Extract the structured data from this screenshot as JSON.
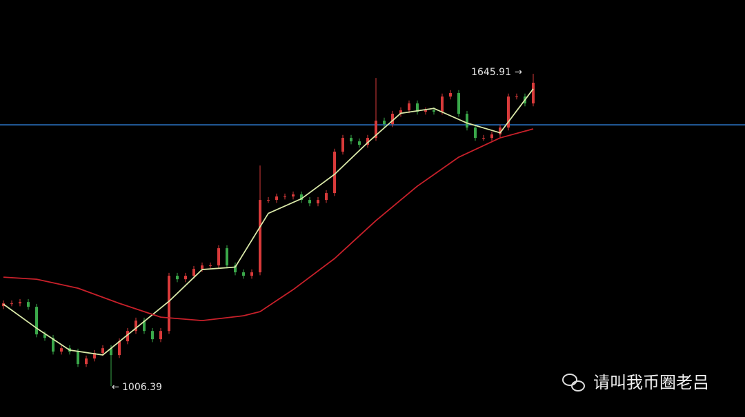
{
  "chart_data": {
    "type": "candlestick",
    "ylim": [
      943,
      1797
    ],
    "up_color": "#d83a3a",
    "down_color": "#3aa84a",
    "open": [
      1170,
      1175.7,
      1175.7,
      1178.5,
      1168.7,
      1112.2,
      1105.1,
      1076.9,
      1083.9,
      1076.9,
      1051.5,
      1062.8,
      1074.1,
      1083.9,
      1069.8,
      1098.1,
      1119.2,
      1140.4,
      1119.2,
      1102.3,
      1119.2,
      1232.2,
      1225.1,
      1232.2,
      1246.3,
      1253.4,
      1253.4,
      1288.7,
      1253.4,
      1239.3,
      1232.2,
      1239.3,
      1387.5,
      1387.5,
      1394.6,
      1394.6,
      1398.8,
      1387.5,
      1380.5,
      1387.5,
      1401.6,
      1486.4,
      1514.6,
      1507.5,
      1500.5,
      1514.6,
      1549.9,
      1542.8,
      1564.0,
      1571.1,
      1585.2,
      1568.3,
      1571.1,
      1568.3,
      1599.3,
      1606.4,
      1564.0,
      1535.8,
      1514.6,
      1514.6,
      1521.7,
      1535.8,
      1599.3,
      1599.3,
      1585.2
    ],
    "high": [
      1181.7,
      1181.7,
      1184.5,
      1184.5,
      1174.7,
      1118.2,
      1111.1,
      1089.9,
      1089.9,
      1082.9,
      1068.8,
      1080.1,
      1089.9,
      1089.9,
      1104.1,
      1125.2,
      1146.4,
      1146.4,
      1125.2,
      1125.2,
      1238.2,
      1238.2,
      1238.2,
      1252.3,
      1259.4,
      1259.4,
      1294.7,
      1294.7,
      1259.4,
      1245.3,
      1245.3,
      1458.1,
      1393.5,
      1400.6,
      1400.6,
      1404.8,
      1404.8,
      1393.5,
      1393.5,
      1407.6,
      1492.4,
      1520.6,
      1520.6,
      1513.5,
      1520.6,
      1637.4,
      1555.9,
      1570,
      1577.1,
      1591.2,
      1591.2,
      1577.1,
      1577.1,
      1605.3,
      1612.4,
      1612.4,
      1570,
      1541.8,
      1520.6,
      1527.7,
      1541.8,
      1605.3,
      1605.3,
      1605.3,
      1645.91
    ],
    "low": [
      1164,
      1169.7,
      1169.7,
      1162.7,
      1106.2,
      1099.1,
      1070.9,
      1070.9,
      1070.9,
      1045.5,
      1045.5,
      1056.8,
      1068.1,
      1006.39,
      1063.8,
      1092.1,
      1113.2,
      1113.2,
      1096.3,
      1096.3,
      1113.2,
      1219.1,
      1219.1,
      1226.2,
      1240.3,
      1247.4,
      1247.4,
      1247.4,
      1233.3,
      1226.2,
      1226.2,
      1233.3,
      1381.5,
      1381.5,
      1388.6,
      1388.6,
      1381.5,
      1374.5,
      1374.5,
      1381.5,
      1395.6,
      1480.4,
      1501.5,
      1494.5,
      1494.5,
      1508.6,
      1536.8,
      1536.8,
      1558,
      1565.1,
      1562.3,
      1562.3,
      1562.3,
      1562.3,
      1593.3,
      1558,
      1529.8,
      1508.6,
      1508.6,
      1508.6,
      1515.7,
      1529.8,
      1593.3,
      1579.2,
      1579.2
    ],
    "close": [
      1175.7,
      1175.7,
      1178.5,
      1168.7,
      1112.2,
      1105.1,
      1076.9,
      1083.9,
      1076.9,
      1051.5,
      1062.8,
      1074.1,
      1083.9,
      1069.8,
      1098.1,
      1119.2,
      1140.4,
      1119.2,
      1102.3,
      1119.2,
      1232.2,
      1225.1,
      1232.2,
      1246.3,
      1253.4,
      1253.4,
      1288.7,
      1253.4,
      1239.3,
      1232.2,
      1239.3,
      1387.5,
      1387.5,
      1394.6,
      1394.6,
      1398.8,
      1387.5,
      1380.5,
      1387.5,
      1401.6,
      1486.4,
      1514.6,
      1507.5,
      1500.5,
      1514.6,
      1549.9,
      1542.8,
      1564.0,
      1571.1,
      1585.2,
      1568.3,
      1571.1,
      1568.3,
      1599.3,
      1606.4,
      1564.0,
      1535.8,
      1514.6,
      1514.6,
      1521.7,
      1535.8,
      1599.3,
      1599.3,
      1585.2,
      1627.6
    ],
    "lines": [
      {
        "color": "#d9e8a8",
        "x": [
          0,
          4,
          8,
          12,
          16,
          20,
          24,
          28,
          32,
          36,
          40,
          44,
          48,
          52,
          56,
          60,
          64
        ],
        "values": [
          1174,
          1125,
          1080,
          1070,
          1125,
          1180,
          1245,
          1250,
          1360,
          1390,
          1440,
          1505,
          1565,
          1575,
          1545,
          1525,
          1615
        ]
      },
      {
        "color": "#c8202a",
        "x": [
          0,
          4,
          9,
          14,
          19,
          24,
          29,
          31,
          35,
          40,
          45,
          50,
          55,
          60,
          64
        ],
        "values": [
          1229.4,
          1225.1,
          1206.8,
          1175.7,
          1147.5,
          1140.4,
          1150.3,
          1158.8,
          1203.9,
          1267.5,
          1345.2,
          1415.8,
          1475.1,
          1514.6,
          1533.0
        ]
      }
    ],
    "hline": {
      "value": 1541.4,
      "color": "#2f7fd8"
    },
    "watermark": "请叫我币圈老吕"
  }
}
